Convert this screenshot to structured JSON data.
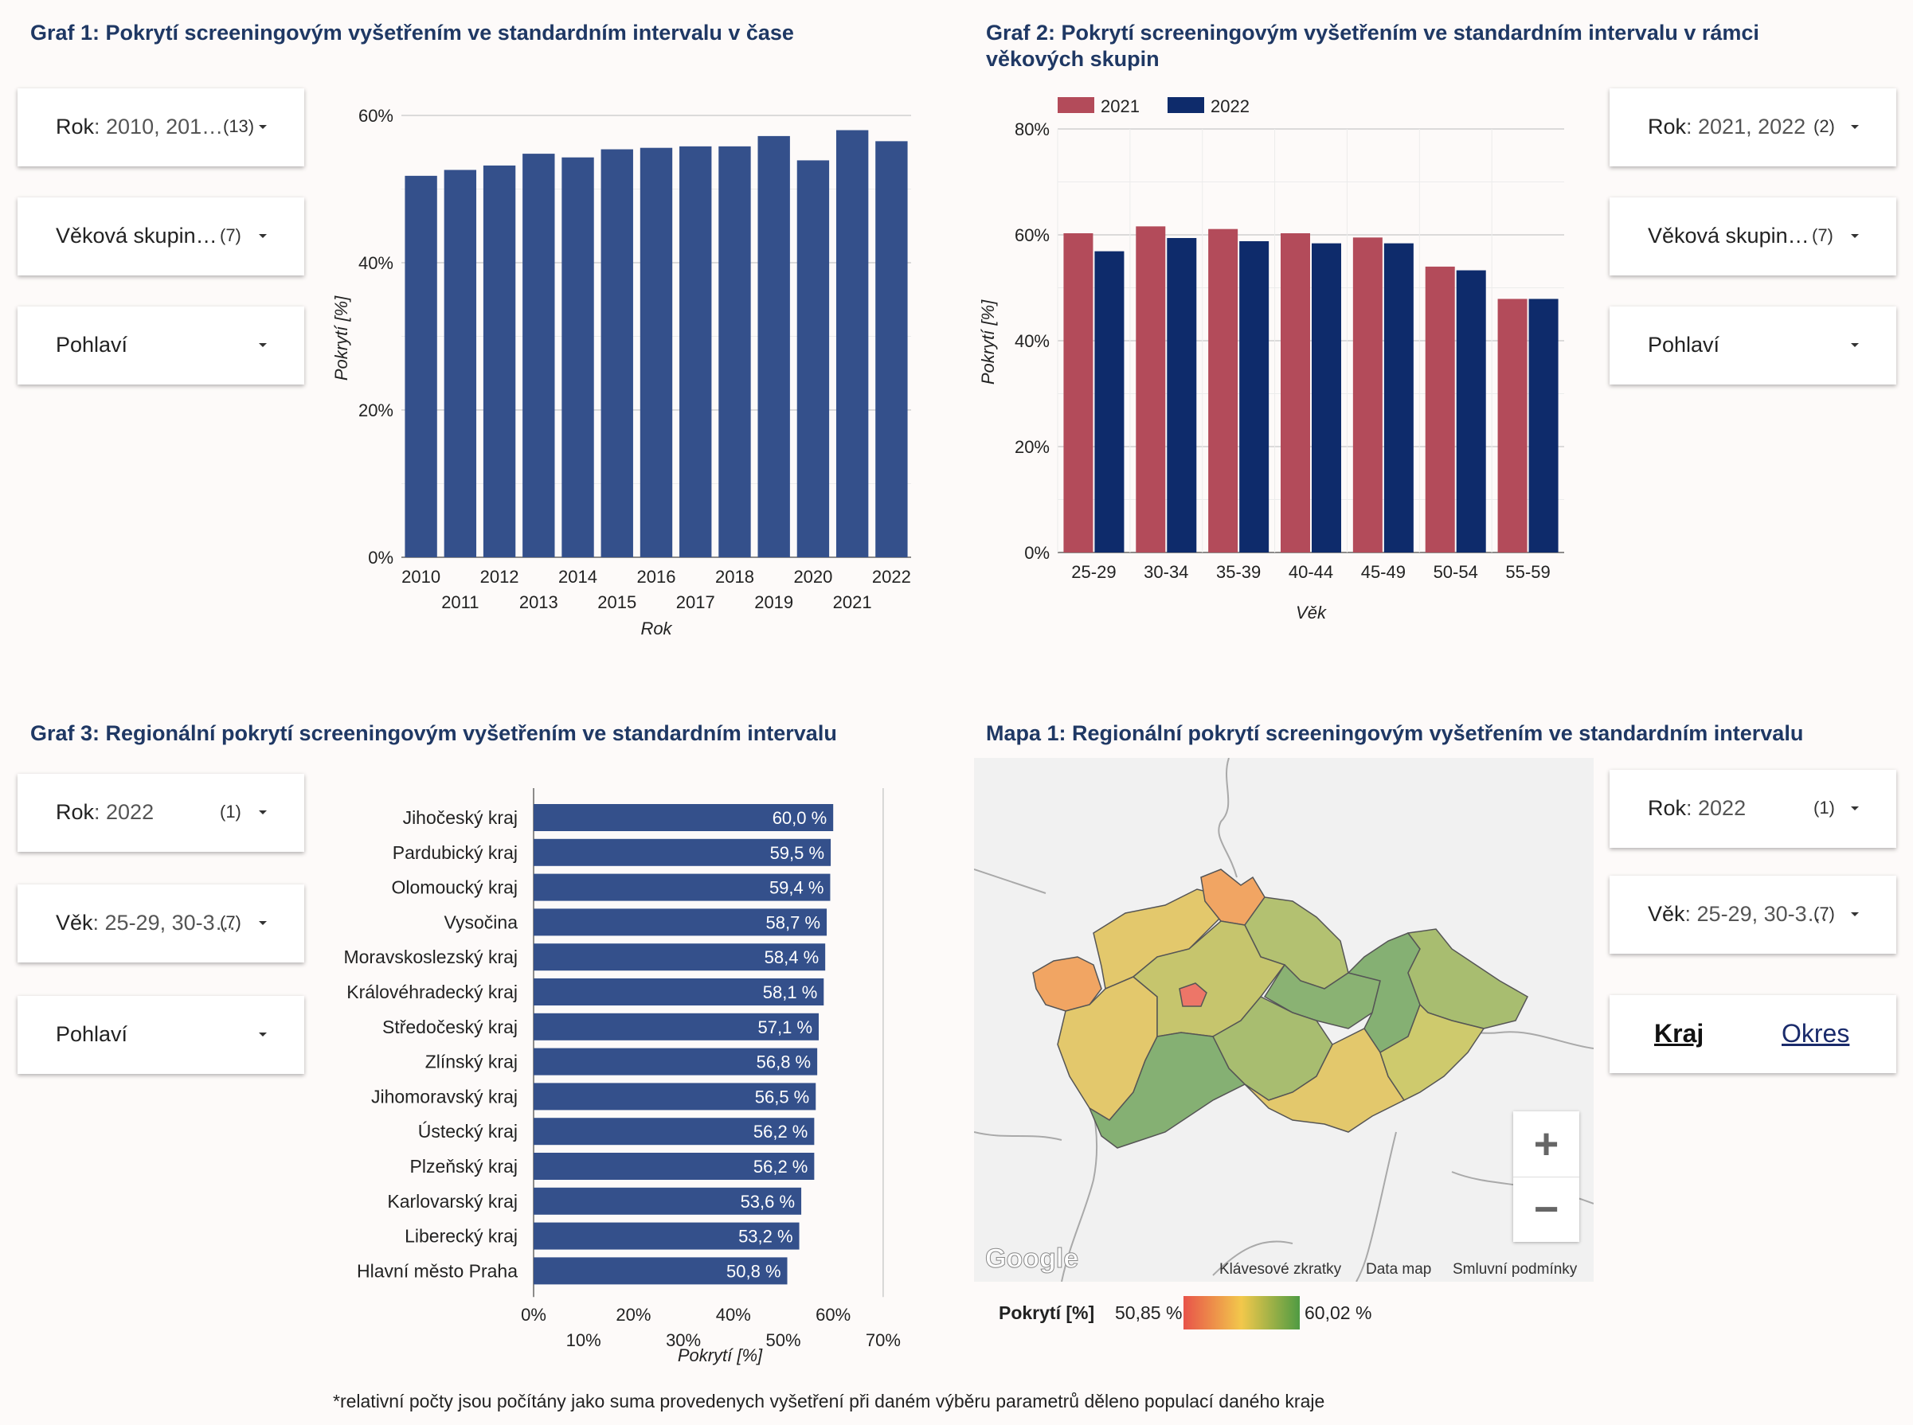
{
  "panels": {
    "graf1_title": "Graf 1: Pokrytí screeningovým vyšetřením ve standardním intervalu v čase",
    "graf2_title_line1": "Graf 2: Pokrytí screeningovým vyšetřením ve standardním intervalu v rámci",
    "graf2_title_line2": "věkových skupin",
    "graf3_title": "Graf 3: Regionální pokrytí screeningovým vyšetřením ve standardním intervalu",
    "mapa1_title": "Mapa 1: Regionální pokrytí screeningovým vyšetřením ve standardním intervalu"
  },
  "filters": {
    "g1_year": {
      "label": "Rok",
      "value": ": 2010, 201…",
      "count": "(13)"
    },
    "g1_age": {
      "label": "Věková skupin…",
      "count": "(7)"
    },
    "g1_sex": {
      "label": "Pohlaví"
    },
    "g2_year": {
      "label": "Rok",
      "value": ": 2021, 2022",
      "count": "(2)"
    },
    "g2_age": {
      "label": "Věková skupin…",
      "count": "(7)"
    },
    "g2_sex": {
      "label": "Pohlaví"
    },
    "g3_year": {
      "label": "Rok",
      "value": ": 2022",
      "count": "(1)"
    },
    "g3_age": {
      "label": "Věk",
      "value": ": 25-29, 30-3…",
      "count": "(7)"
    },
    "g3_sex": {
      "label": "Pohlaví"
    },
    "map_year": {
      "label": "Rok",
      "value": ": 2022",
      "count": "(1)"
    },
    "map_age": {
      "label": "Věk",
      "value": ": 25-29, 30-3…",
      "count": "(7)"
    }
  },
  "map_toggle": {
    "kraj": "Kraj",
    "okres": "Okres"
  },
  "map": {
    "footer_shortcuts": "Klávesové zkratky",
    "footer_data": "Data map",
    "footer_terms": "Smluvní podmínky",
    "google": "Google",
    "zoom_in": "+",
    "zoom_out": "−",
    "legend_label": "Pokrytí [%]",
    "legend_min": "50,85 %",
    "legend_max": "60,02 %"
  },
  "footnote": "*relativní počty jsou počítány jako suma provedenych vyšetření při daném výběru parametrů děleno populací daného kraje",
  "chart_data": [
    {
      "type": "bar",
      "title": "Graf 1: Pokrytí screeningovým vyšetřením ve standardním intervalu v čase",
      "categories": [
        "2010",
        "2011",
        "2012",
        "2013",
        "2014",
        "2015",
        "2016",
        "2017",
        "2018",
        "2019",
        "2020",
        "2021",
        "2022"
      ],
      "values": [
        51.8,
        52.6,
        53.2,
        54.8,
        54.3,
        55.4,
        55.6,
        55.8,
        55.8,
        57.2,
        53.9,
        58.0,
        56.5
      ],
      "xlabel": "Rok",
      "ylabel": "Pokrytí [%]",
      "ylim": [
        0,
        60
      ],
      "yticks": [
        "0%",
        "20%",
        "40%",
        "60%"
      ],
      "color": "#34508b"
    },
    {
      "type": "bar",
      "title": "Graf 2: Pokrytí screeningovým vyšetřením ve standardním intervalu v rámci věkových skupin",
      "categories": [
        "25-29",
        "30-34",
        "35-39",
        "40-44",
        "45-49",
        "50-54",
        "55-59"
      ],
      "series": [
        {
          "name": "2021",
          "color": "#b34b5a",
          "values": [
            60.3,
            61.6,
            61.1,
            60.3,
            59.5,
            54.0,
            47.9
          ]
        },
        {
          "name": "2022",
          "color": "#0e2b6b",
          "values": [
            56.9,
            59.4,
            58.8,
            58.4,
            58.4,
            53.3,
            47.9
          ]
        }
      ],
      "xlabel": "Věk",
      "ylabel": "Pokrytí [%]",
      "ylim": [
        0,
        80
      ],
      "yticks": [
        "0%",
        "20%",
        "40%",
        "60%",
        "80%"
      ]
    },
    {
      "type": "bar",
      "orientation": "horizontal",
      "title": "Graf 3: Regionální pokrytí screeningovým vyšetřením ve standardním intervalu",
      "categories": [
        "Jihočeský kraj",
        "Pardubický kraj",
        "Olomoucký kraj",
        "Vysočina",
        "Moravskoslezský kraj",
        "Královéhradecký kraj",
        "Středočeský kraj",
        "Zlínský kraj",
        "Jihomoravský kraj",
        "Ústecký kraj",
        "Plzeňský kraj",
        "Karlovarský kraj",
        "Liberecký kraj",
        "Hlavní město Praha"
      ],
      "values": [
        60.0,
        59.5,
        59.4,
        58.7,
        58.4,
        58.1,
        57.1,
        56.8,
        56.5,
        56.2,
        56.2,
        53.6,
        53.2,
        50.8
      ],
      "labels": [
        "60,0 %",
        "59,5 %",
        "59,4 %",
        "58,7 %",
        "58,4 %",
        "58,1 %",
        "57,1 %",
        "56,8 %",
        "56,5 %",
        "56,2 %",
        "56,2 %",
        "53,6 %",
        "53,2 %",
        "50,8 %"
      ],
      "xlabel": "Pokrytí [%]",
      "xlim": [
        0,
        70
      ],
      "xticks": [
        "0%",
        "10%",
        "20%",
        "30%",
        "40%",
        "50%",
        "60%",
        "70%"
      ],
      "color": "#34508b"
    }
  ]
}
